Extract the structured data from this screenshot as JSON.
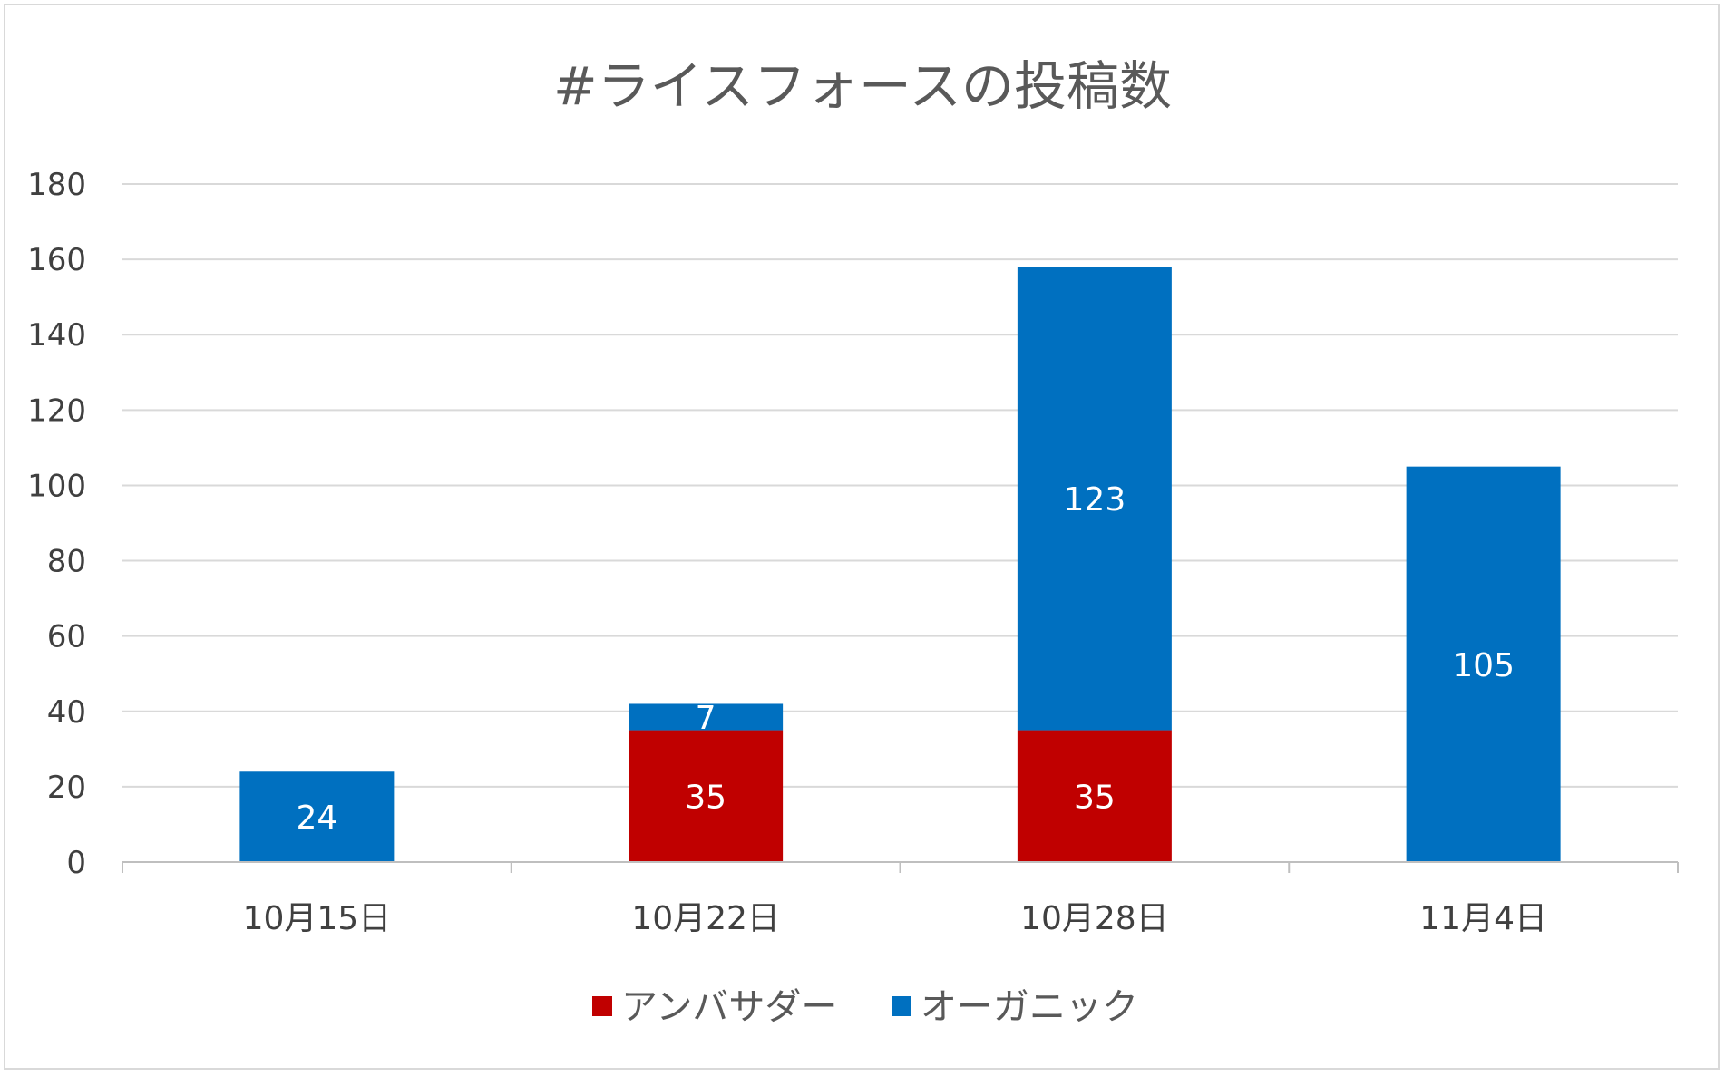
{
  "chart_data": {
    "type": "bar",
    "stacked": true,
    "title": "#ライスフォースの投稿数",
    "xlabel": "",
    "ylabel": "",
    "categories": [
      "10月15日",
      "10月22日",
      "10月28日",
      "11月4日"
    ],
    "series": [
      {
        "name": "アンバサダー",
        "color": "#c00000",
        "values": [
          0,
          35,
          35,
          0
        ]
      },
      {
        "name": "オーガニック",
        "color": "#0070c0",
        "values": [
          24,
          7,
          123,
          105
        ]
      }
    ],
    "ylim": [
      0,
      180
    ],
    "yticks": [
      0,
      20,
      40,
      60,
      80,
      100,
      120,
      140,
      160,
      180
    ],
    "grid": true,
    "legend_position": "bottom",
    "colors": {
      "gridline": "#d9d9d9",
      "axis": "#bfbfbf",
      "label_text": "#ffffff"
    }
  }
}
